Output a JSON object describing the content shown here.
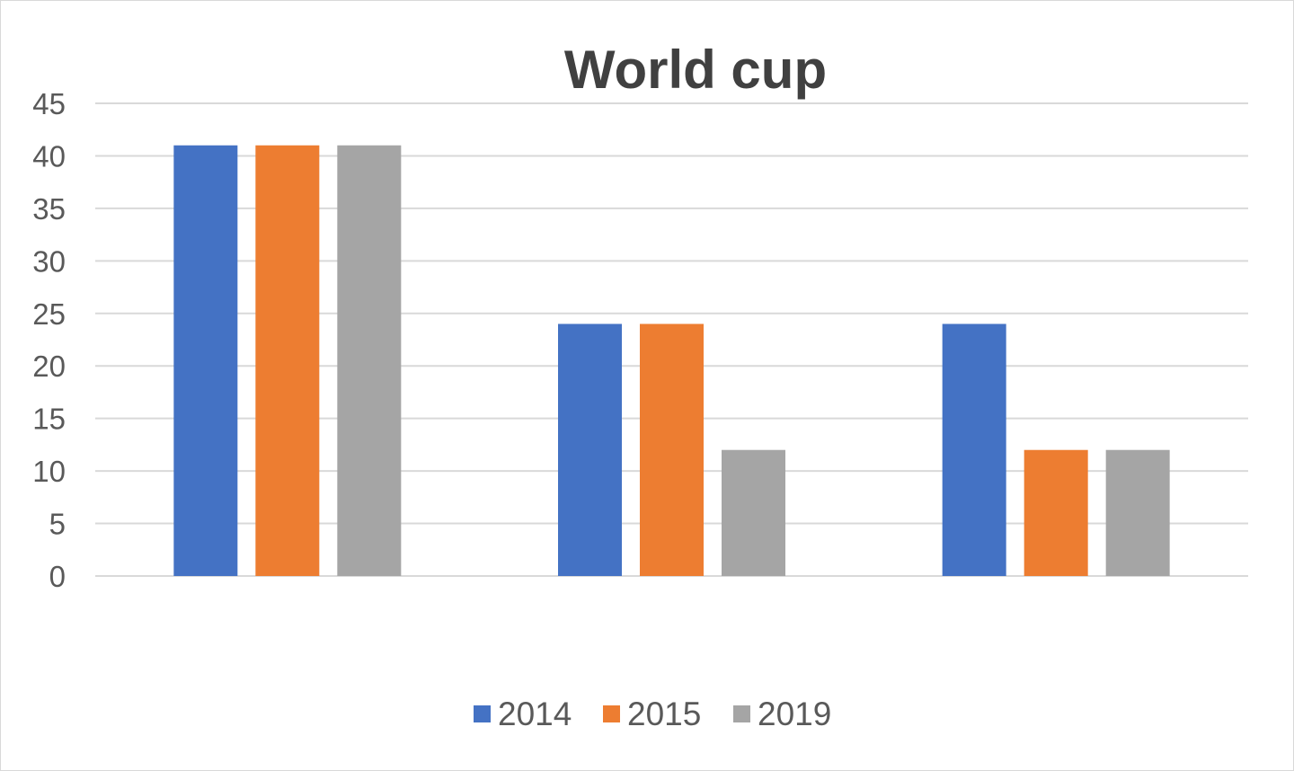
{
  "chart_data": {
    "type": "bar",
    "title": "World cup",
    "xlabel": "",
    "ylabel": "",
    "categories": [
      "",
      "",
      ""
    ],
    "ylim": [
      0,
      45
    ],
    "yticks": [
      0,
      5,
      10,
      15,
      20,
      25,
      30,
      35,
      40,
      45
    ],
    "grid": true,
    "legend_position": "bottom",
    "series": [
      {
        "name": "2014",
        "color": "#4472c4",
        "values": [
          41,
          24,
          24
        ]
      },
      {
        "name": "2015",
        "color": "#ed7d31",
        "values": [
          41,
          24,
          12
        ]
      },
      {
        "name": "2019",
        "color": "#a5a5a5",
        "values": [
          41,
          12,
          12
        ]
      }
    ]
  }
}
